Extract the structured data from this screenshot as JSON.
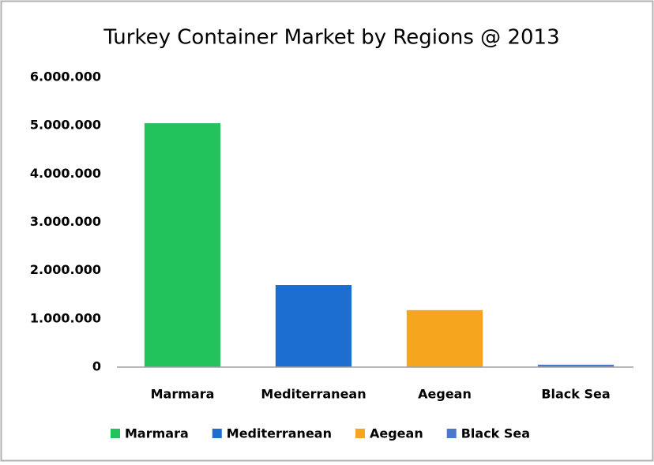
{
  "chart_data": {
    "type": "bar",
    "title": "Turkey Container Market by Regions @ 2013",
    "categories": [
      "Marmara",
      "Mediterranean",
      "Aegean",
      "Black Sea"
    ],
    "values": [
      5050000,
      1700000,
      1180000,
      50000
    ],
    "colors": [
      "#22c35c",
      "#1c6fd0",
      "#f5a61e",
      "#4a78cc"
    ],
    "ylim": [
      0,
      6000000
    ],
    "yticks": [
      0,
      {
        "value": 1000000,
        "label": "1.000.000"
      },
      {
        "value": 2000000,
        "label": "2.000.000"
      },
      {
        "value": 3000000,
        "label": "3.000.000"
      },
      {
        "value": 4000000,
        "label": "4.000.000"
      },
      {
        "value": 5000000,
        "label": "5.000.000"
      },
      {
        "value": 6000000,
        "label": "6.000.000"
      }
    ],
    "grid": false,
    "legend": "bottom"
  }
}
